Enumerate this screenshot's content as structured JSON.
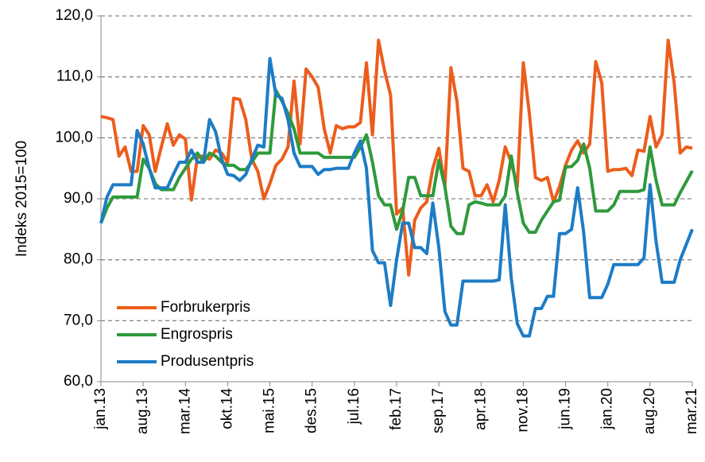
{
  "chart_data": {
    "type": "line",
    "ylabel": "Indeks 2015=100",
    "categories": [
      "jan.13",
      null,
      null,
      null,
      null,
      null,
      null,
      "aug.13",
      null,
      null,
      null,
      null,
      null,
      null,
      "mar.14",
      null,
      null,
      null,
      null,
      null,
      null,
      "okt.14",
      null,
      null,
      null,
      null,
      null,
      null,
      "mai.15",
      null,
      null,
      null,
      null,
      null,
      null,
      "des.15",
      null,
      null,
      null,
      null,
      null,
      null,
      "jul.16",
      null,
      null,
      null,
      null,
      null,
      null,
      "feb.17",
      null,
      null,
      null,
      null,
      null,
      null,
      "sep.17",
      null,
      null,
      null,
      null,
      null,
      null,
      "apr.18",
      null,
      null,
      null,
      null,
      null,
      null,
      "nov.18",
      null,
      null,
      null,
      null,
      null,
      null,
      "jun.19",
      null,
      null,
      null,
      null,
      null,
      null,
      "jan.20",
      null,
      null,
      null,
      null,
      null,
      null,
      "aug.20",
      null,
      null,
      null,
      null,
      null,
      null,
      "mar.21"
    ],
    "series": [
      {
        "name": "Forbrukerpris",
        "color": "#ec5d1c",
        "values": [
          103.5,
          103.3,
          103,
          97,
          98.5,
          94.5,
          94.5,
          102,
          100.5,
          94.5,
          98.5,
          102.3,
          98.8,
          100.5,
          99.8,
          89.8,
          97,
          97,
          96.5,
          98,
          97.5,
          96,
          106.5,
          106.3,
          103,
          96.5,
          94.5,
          90,
          92.5,
          95.5,
          96.5,
          98.5,
          109.3,
          99,
          111.3,
          110,
          108.3,
          101.5,
          97.5,
          102,
          101.5,
          101.8,
          101.8,
          102.5,
          112.3,
          100.5,
          116,
          111,
          107,
          87.5,
          88.5,
          77.5,
          86.5,
          88.5,
          89.5,
          95,
          98.3,
          92,
          111.5,
          106,
          95,
          94.5,
          90.5,
          90.5,
          92.3,
          89.5,
          93,
          98.5,
          96,
          92,
          112.3,
          104,
          93.5,
          93,
          93.5,
          89.5,
          92,
          95.5,
          98,
          99.5,
          97.5,
          99,
          112.5,
          109,
          94.5,
          94.8,
          94.8,
          95,
          93.8,
          98,
          97.8,
          103.5,
          98.5,
          100.5,
          116,
          109,
          97.5,
          98.5,
          98.3
        ]
      },
      {
        "name": "Engrospris",
        "color": "#2f9a3c",
        "values": [
          86,
          88.5,
          90.3,
          90.3,
          90.3,
          90.3,
          90.3,
          96.5,
          95,
          92.5,
          91.5,
          91.5,
          91.5,
          93.5,
          95,
          96.5,
          97.5,
          96,
          97.5,
          97,
          96,
          95.5,
          95.5,
          94.8,
          94.8,
          96,
          97.5,
          97.5,
          97.5,
          107.8,
          106,
          104,
          101.5,
          97.5,
          97.5,
          97.5,
          97.5,
          96.8,
          96.8,
          96.8,
          96.8,
          96.8,
          96.8,
          98.5,
          100.5,
          96,
          90.5,
          89,
          89,
          85,
          88,
          93.5,
          93.5,
          90.5,
          90.5,
          90.5,
          96.3,
          92,
          85.5,
          84.3,
          84.3,
          89,
          89.5,
          89.3,
          89,
          89,
          89,
          90.5,
          97,
          91,
          86,
          84.5,
          84.5,
          86.5,
          88,
          89.5,
          89.8,
          95.2,
          95.3,
          96.3,
          99,
          95,
          88,
          88,
          88,
          89,
          91.2,
          91.2,
          91.2,
          91.2,
          91.5,
          98.5,
          93,
          89,
          89,
          89,
          91,
          92.8,
          94.6
        ]
      },
      {
        "name": "Produsentpris",
        "color": "#1d7cc5",
        "values": [
          86,
          90.3,
          92.3,
          92.3,
          92.3,
          92.3,
          101.2,
          99,
          95,
          91.8,
          91.8,
          91.8,
          94,
          96,
          96,
          98,
          96,
          96,
          103,
          101,
          96.5,
          94,
          93.8,
          93,
          94,
          96.5,
          98.8,
          98.5,
          113,
          107,
          106.5,
          103,
          97.5,
          95.3,
          95.3,
          95.3,
          94,
          94.8,
          94.8,
          95,
          95,
          95,
          97.5,
          99.5,
          95,
          81.5,
          79.5,
          79.5,
          72.5,
          80,
          86,
          86,
          82,
          82,
          81,
          89.3,
          82,
          71.5,
          69.3,
          69.3,
          76.5,
          76.5,
          76.5,
          76.5,
          76.5,
          76.5,
          76.7,
          89,
          77,
          69.5,
          67.5,
          67.5,
          72,
          72,
          74,
          74,
          84.3,
          84.3,
          85,
          91.8,
          84.5,
          73.8,
          73.8,
          73.8,
          76,
          79.2,
          79.2,
          79.2,
          79.2,
          79.2,
          80.3,
          92.3,
          83,
          76.3,
          76.3,
          76.3,
          80,
          82.5,
          85
        ]
      }
    ],
    "ylim": [
      60,
      120
    ],
    "yticks": [
      {
        "value": 60,
        "label": "60,0"
      },
      {
        "value": 70,
        "label": "70,0"
      },
      {
        "value": 80,
        "label": "80,0"
      },
      {
        "value": 90,
        "label": "90,0"
      },
      {
        "value": 100,
        "label": "100,0"
      },
      {
        "value": 110,
        "label": "110,0"
      },
      {
        "value": 120,
        "label": "120,0"
      }
    ],
    "grid": true,
    "legend": "lower-left"
  }
}
